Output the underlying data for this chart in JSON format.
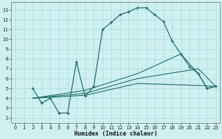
{
  "title": "",
  "xlabel": "Humidex (Indice chaleur)",
  "bg_color": "#cff0f0",
  "grid_color": "#a8d8d8",
  "line_color": "#1a6b6b",
  "xlim": [
    -0.5,
    23.5
  ],
  "ylim": [
    1.5,
    13.8
  ],
  "xticks": [
    0,
    1,
    2,
    3,
    4,
    5,
    6,
    7,
    8,
    9,
    10,
    11,
    12,
    13,
    14,
    15,
    16,
    17,
    18,
    19,
    20,
    21,
    22,
    23
  ],
  "yticks": [
    2,
    3,
    4,
    5,
    6,
    7,
    8,
    9,
    10,
    11,
    12,
    13
  ],
  "line1": {
    "x": [
      2,
      3,
      4,
      5,
      6,
      7,
      8,
      9,
      10,
      11,
      12,
      13,
      14,
      15,
      16,
      17,
      18,
      19,
      20,
      21,
      22,
      23
    ],
    "y": [
      5.0,
      3.5,
      4.0,
      2.5,
      2.5,
      7.7,
      4.2,
      5.2,
      11.0,
      11.7,
      12.5,
      12.8,
      13.2,
      13.2,
      12.5,
      11.8,
      9.8,
      8.5,
      7.2,
      6.5,
      5.0,
      5.2
    ]
  },
  "line2": {
    "x": [
      2,
      8,
      14,
      19,
      21,
      22,
      23
    ],
    "y": [
      4.0,
      4.8,
      6.5,
      8.5,
      6.5,
      5.0,
      5.2
    ]
  },
  "line3": {
    "x": [
      2,
      8,
      14,
      21,
      23
    ],
    "y": [
      4.0,
      4.5,
      6.0,
      7.0,
      5.2
    ]
  },
  "line4": {
    "x": [
      2,
      8,
      14,
      21,
      23
    ],
    "y": [
      4.0,
      4.3,
      5.5,
      5.3,
      5.2
    ]
  }
}
